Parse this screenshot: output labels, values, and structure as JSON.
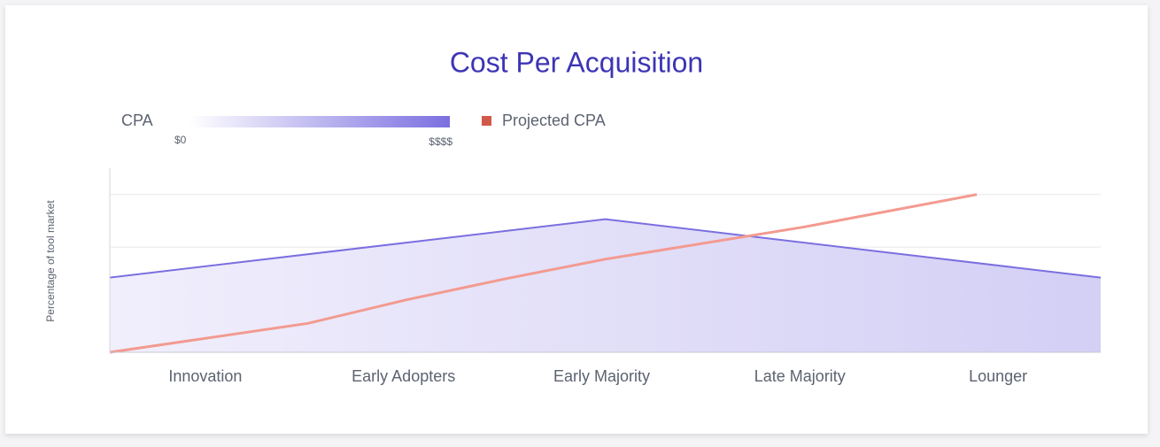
{
  "chart_data": {
    "type": "area",
    "title": "Cost Per Acquisition",
    "ylabel": "Percentage of tool market",
    "categories": [
      "Innovation",
      "Early Adopters",
      "Early Majority",
      "Late Majority",
      "Lounger"
    ],
    "xlim": [
      0,
      5
    ],
    "ylim": [
      0,
      3.5
    ],
    "yticks": [
      1,
      2,
      3
    ],
    "show_ytick_labels": false,
    "grid": true,
    "legend_scale": [
      "$0",
      "$$$$"
    ],
    "series": [
      {
        "name": "CPA",
        "type": "area",
        "color": "#7b6fe0",
        "fill_from": "#f1effc",
        "fill_to": "#d3cff5",
        "x": [
          0,
          2.5,
          5
        ],
        "values": [
          1.42,
          2.53,
          1.42
        ]
      },
      {
        "name": "Projected CPA",
        "type": "line",
        "color": "#f39a90",
        "legend_color": "#d0594a",
        "x": [
          0,
          1,
          1.5,
          2,
          2.5,
          3.5,
          4.375
        ],
        "values": [
          0,
          0.55,
          1.0,
          1.4,
          1.77,
          2.38,
          3.0
        ]
      }
    ]
  }
}
